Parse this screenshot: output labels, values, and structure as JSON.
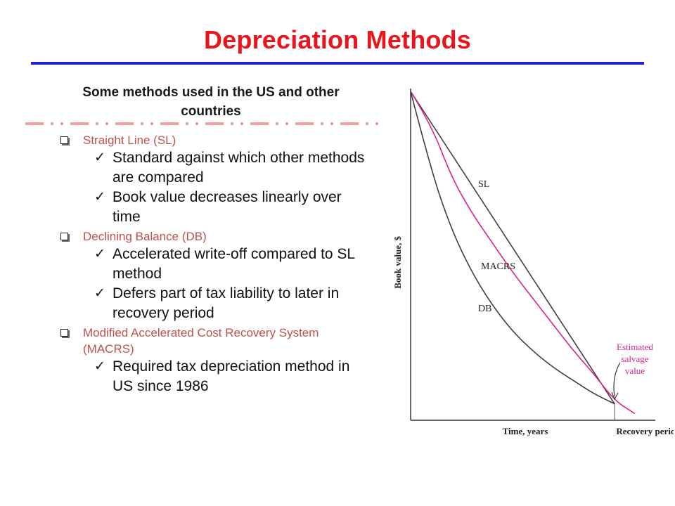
{
  "slide": {
    "title": "Depreciation Methods",
    "subtitle": "Some methods used in the US and other countries",
    "colors": {
      "title": "#e8161c",
      "rule": "#1f1fcf",
      "bullet": "#c0504d",
      "dashes": "#e9a0a0"
    }
  },
  "bullets": [
    {
      "label": "Straight Line (SL)",
      "items": [
        "Standard against which other methods are compared",
        "Book value decreases linearly over time"
      ]
    },
    {
      "label": "Declining Balance (DB)",
      "items": [
        "Accelerated write-off compared to SL method",
        "Defers part of tax liability to later in recovery period"
      ]
    },
    {
      "label": "Modified Accelerated Cost Recovery System (MACRS)",
      "items": [
        "Required tax depreciation method in US since 1986"
      ]
    }
  ],
  "chart_data": {
    "type": "line",
    "xlabel": "Time, years",
    "ylabel": "Book value, $",
    "x_marker_label": "Recovery period",
    "xlim": [
      0,
      1.2
    ],
    "ylim": [
      0,
      1
    ],
    "grid": false,
    "series": [
      {
        "name": "SL",
        "color": "#404040",
        "x": [
          0,
          1
        ],
        "y": [
          1,
          0.05
        ]
      },
      {
        "name": "MACRS",
        "color": "#e0218a",
        "x": [
          0,
          0.1,
          0.2,
          0.3,
          0.4,
          0.5,
          0.6,
          0.7,
          0.8,
          0.9,
          1.0,
          1.1
        ],
        "y": [
          1,
          0.9,
          0.74,
          0.63,
          0.54,
          0.45,
          0.37,
          0.29,
          0.21,
          0.14,
          0.06,
          0.02
        ]
      },
      {
        "name": "DB",
        "color": "#404040",
        "x": [
          0,
          0.1,
          0.2,
          0.3,
          0.4,
          0.5,
          0.6,
          0.7,
          0.8,
          0.9,
          1.0
        ],
        "y": [
          1,
          0.76,
          0.58,
          0.45,
          0.35,
          0.27,
          0.21,
          0.16,
          0.12,
          0.08,
          0.05
        ]
      }
    ],
    "annotation": {
      "text": [
        "Estimated",
        "salvage",
        "value"
      ],
      "color": "#e0218a",
      "x": 1,
      "y": 0.05
    }
  }
}
